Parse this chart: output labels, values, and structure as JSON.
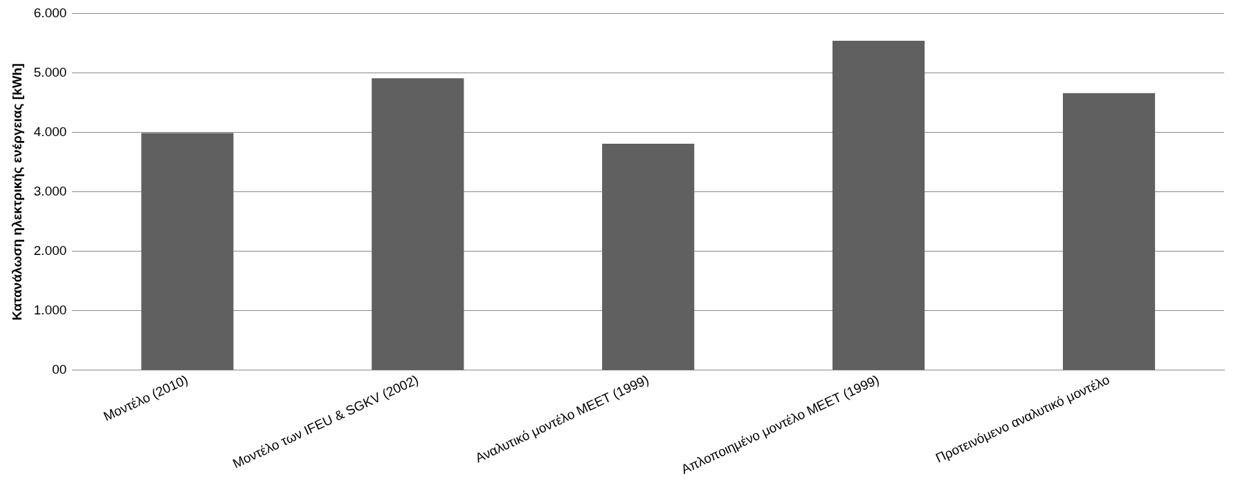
{
  "chart_data": {
    "type": "bar",
    "ylabel": "Κατανάλωση ηλεκτρικής ενέργειας [kWh]",
    "categories": [
      "Μοντέλο (2010)",
      "Μοντέλο των IFEU & SGKV (2002)",
      "Αναλυτικό μοντέλο MEET (1999)",
      "Απλοποιημένο μοντέλο MEET (1999)",
      "Προτεινόμενο αναλυτικό μοντέλο"
    ],
    "values": [
      3990,
      4910,
      3810,
      5540,
      4660
    ],
    "color": "#606060",
    "ylim": [
      0,
      6000
    ],
    "yticks": [
      {
        "value": 0,
        "label": "00"
      },
      {
        "value": 1000,
        "label": "1.000"
      },
      {
        "value": 2000,
        "label": "2.000"
      },
      {
        "value": 3000,
        "label": "3.000"
      },
      {
        "value": 4000,
        "label": "4.000"
      },
      {
        "value": 5000,
        "label": "5.000"
      },
      {
        "value": 6000,
        "label": "6.000"
      }
    ],
    "grid": "y",
    "legend": false
  }
}
